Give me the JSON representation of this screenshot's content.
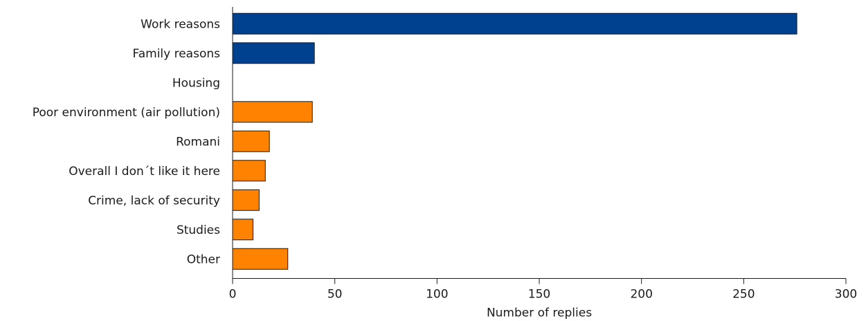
{
  "chart_data": {
    "type": "bar",
    "orientation": "horizontal",
    "categories": [
      "Work reasons",
      "Family reasons",
      "Housing",
      "Poor environment (air pollution)",
      "Romani",
      "Overall I don´t like it here",
      "Crime, lack of security",
      "Studies",
      "Other"
    ],
    "values": [
      276,
      40,
      0,
      39,
      18,
      16,
      13,
      10,
      27
    ],
    "colors": [
      "#00418f",
      "#00418f",
      "#00418f",
      "#ff8200",
      "#ff8200",
      "#ff8200",
      "#ff8200",
      "#ff8200",
      "#ff8200"
    ],
    "xlabel": "Number of replies",
    "ylabel": "",
    "title": "",
    "xlim": [
      0,
      300
    ],
    "xticks": [
      0,
      50,
      100,
      150,
      200,
      250,
      300
    ],
    "grid": false,
    "legend": "none"
  }
}
